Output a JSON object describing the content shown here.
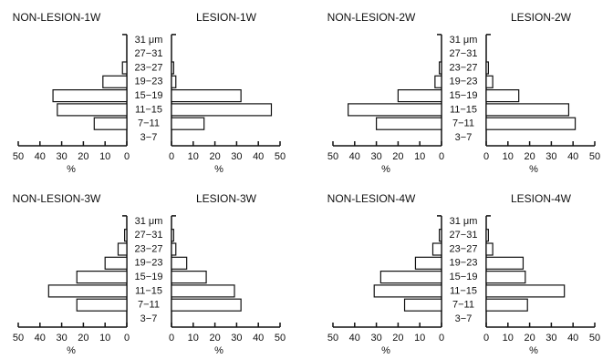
{
  "chart_data": [
    {
      "type": "pyramid",
      "categories": [
        "3−7",
        "7−11",
        "11−15",
        "15−19",
        "19−23",
        "23−27",
        "27−31",
        "31 μm"
      ],
      "series": [
        {
          "name": "NON-LESION-1W",
          "color": "#ffffff",
          "values": [
            0,
            15,
            32,
            34,
            11,
            2,
            0,
            0
          ]
        },
        {
          "name": "LESION-1W",
          "color": "#ffffff",
          "values": [
            0,
            15,
            46,
            32,
            2,
            1,
            0,
            0
          ]
        }
      ],
      "xlim": [
        0,
        50
      ],
      "xticks": [
        0,
        10,
        20,
        30,
        40,
        50
      ],
      "xlabel": "%"
    },
    {
      "type": "pyramid",
      "categories": [
        "3−7",
        "7−11",
        "11−15",
        "15−19",
        "19−23",
        "23−27",
        "27−31",
        "31 μm"
      ],
      "series": [
        {
          "name": "NON-LESION-2W",
          "color": "#ffffff",
          "values": [
            0,
            30,
            43,
            20,
            3,
            1,
            0,
            0
          ]
        },
        {
          "name": "LESION-2W",
          "color": "#ffffff",
          "values": [
            0,
            41,
            38,
            15,
            3,
            1,
            0,
            0
          ]
        }
      ],
      "xlim": [
        0,
        50
      ],
      "xticks": [
        0,
        10,
        20,
        30,
        40,
        50
      ],
      "xlabel": "%"
    },
    {
      "type": "pyramid",
      "categories": [
        "3−7",
        "7−11",
        "11−15",
        "15−19",
        "19−23",
        "23−27",
        "27−31",
        "31 μm"
      ],
      "series": [
        {
          "name": "NON-LESION-3W",
          "color": "#ffffff",
          "values": [
            0,
            23,
            36,
            23,
            10,
            4,
            1,
            0
          ]
        },
        {
          "name": "LESION-3W",
          "color": "#ffffff",
          "values": [
            0,
            32,
            29,
            16,
            7,
            2,
            1,
            0
          ]
        }
      ],
      "xlim": [
        0,
        50
      ],
      "xticks": [
        0,
        10,
        20,
        30,
        40,
        50
      ],
      "xlabel": "%"
    },
    {
      "type": "pyramid",
      "categories": [
        "3−7",
        "7−11",
        "11−15",
        "15−19",
        "19−23",
        "23−27",
        "27−31",
        "31 μm"
      ],
      "series": [
        {
          "name": "NON-LESION-4W",
          "color": "#ffffff",
          "values": [
            0,
            17,
            31,
            28,
            12,
            4,
            1,
            0
          ]
        },
        {
          "name": "LESION-4W",
          "color": "#ffffff",
          "values": [
            0,
            19,
            36,
            18,
            17,
            3,
            1,
            0
          ]
        }
      ],
      "xlim": [
        0,
        50
      ],
      "xticks": [
        0,
        10,
        20,
        30,
        40,
        50
      ],
      "xlabel": "%"
    }
  ]
}
